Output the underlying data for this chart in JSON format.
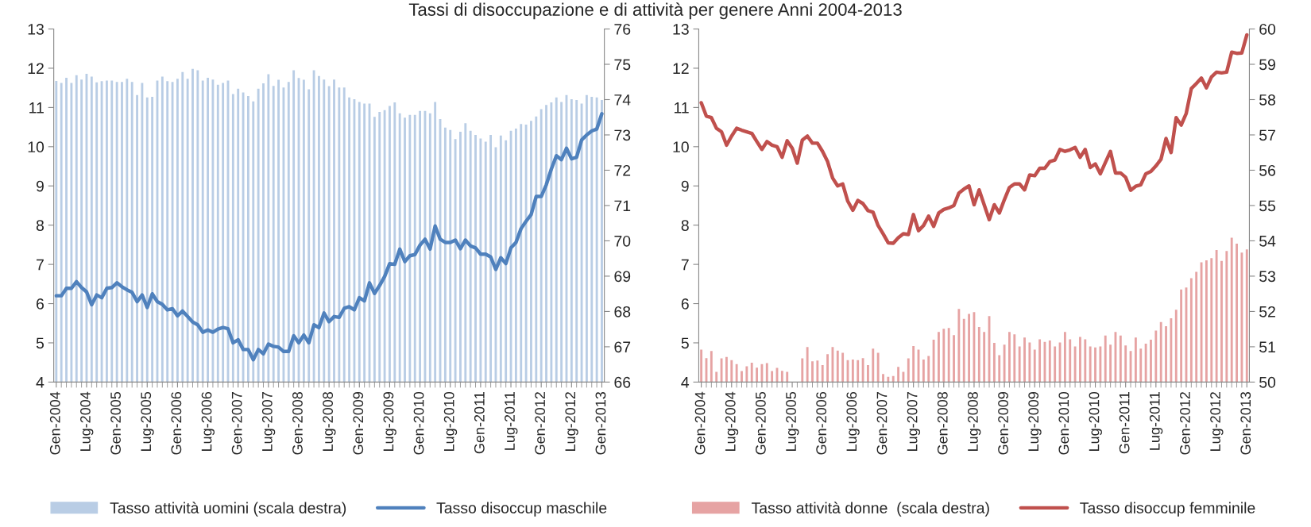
{
  "chart_data": [
    {
      "type": "bar",
      "title": "Tassi di disoccupazione e di attività per genere Anni 2004-2013",
      "categories": [
        "Gen-2004",
        null,
        null,
        null,
        null,
        null,
        "Lug-2004",
        null,
        null,
        null,
        null,
        null,
        "Gen-2005",
        null,
        null,
        null,
        null,
        null,
        "Lug-2005",
        null,
        null,
        null,
        null,
        null,
        "Gen-2006",
        null,
        null,
        null,
        null,
        null,
        "Lug-2006",
        null,
        null,
        null,
        null,
        null,
        "Gen-2007",
        null,
        null,
        null,
        null,
        null,
        "Lug-2007",
        null,
        null,
        null,
        null,
        null,
        "Gen-2008",
        null,
        null,
        null,
        null,
        null,
        "Lug-2008",
        null,
        null,
        null,
        null,
        null,
        "Gen-2009",
        null,
        null,
        null,
        null,
        null,
        "Lug-2009",
        null,
        null,
        null,
        null,
        null,
        "Gen-2010",
        null,
        null,
        null,
        null,
        null,
        "Lug-2010",
        null,
        null,
        null,
        null,
        null,
        "Gen-2011",
        null,
        null,
        null,
        null,
        null,
        "Lug-2011",
        null,
        null,
        null,
        null,
        null,
        "Gen-2012",
        null,
        null,
        null,
        null,
        null,
        "Lug-2012",
        null,
        null,
        null,
        null,
        null,
        "Gen-2013"
      ],
      "ylim": [
        4,
        13
      ],
      "yticks": [
        4,
        5,
        6,
        7,
        8,
        9,
        10,
        11,
        12,
        13
      ],
      "y2lim": [
        66,
        76
      ],
      "y2ticks": [
        66,
        67,
        68,
        69,
        70,
        71,
        72,
        73,
        74,
        75,
        76
      ],
      "legend": "bottom",
      "grid": false,
      "series": [
        {
          "name": "Tasso attività uomini (scala destra)",
          "axis": "y2",
          "color": "#b9cde5",
          "values": [
            74.53,
            74.47,
            74.62,
            74.47,
            74.69,
            74.57,
            74.73,
            74.65,
            74.49,
            74.52,
            74.54,
            74.54,
            74.5,
            74.5,
            74.59,
            74.5,
            74.13,
            74.47,
            74.06,
            74.08,
            74.54,
            74.65,
            74.52,
            74.5,
            74.59,
            74.78,
            74.59,
            74.87,
            74.83,
            74.54,
            74.62,
            74.57,
            74.42,
            74.47,
            74.54,
            74.16,
            74.31,
            74.2,
            74.1,
            73.95,
            74.31,
            74.46,
            74.72,
            74.39,
            74.56,
            74.34,
            74.5,
            74.83,
            74.61,
            74.56,
            74.29,
            74.83,
            74.67,
            74.57,
            74.38,
            74.57,
            74.34,
            74.34,
            74.06,
            74.01,
            73.93,
            73.89,
            73.89,
            73.51,
            73.65,
            73.7,
            73.82,
            73.92,
            73.61,
            73.49,
            73.57,
            73.57,
            73.68,
            73.68,
            73.61,
            73.93,
            73.45,
            73.21,
            73.14,
            72.88,
            73.09,
            73.33,
            73.12,
            73.0,
            72.9,
            72.81,
            73.0,
            72.65,
            72.98,
            72.85,
            73.12,
            73.18,
            73.31,
            73.29,
            73.4,
            73.52,
            73.73,
            73.85,
            73.92,
            74.06,
            73.93,
            74.13,
            74.01,
            73.99,
            73.89,
            74.13,
            74.08,
            74.06,
            73.99
          ]
        },
        {
          "name": "Tasso disoccup maschile",
          "type": "line",
          "axis": "y",
          "color": "#4f81bd",
          "values": [
            6.2,
            6.2,
            6.39,
            6.39,
            6.56,
            6.41,
            6.3,
            5.97,
            6.22,
            6.15,
            6.39,
            6.41,
            6.53,
            6.43,
            6.35,
            6.29,
            6.05,
            6.22,
            5.9,
            6.25,
            6.05,
            5.98,
            5.84,
            5.87,
            5.69,
            5.81,
            5.67,
            5.53,
            5.46,
            5.27,
            5.33,
            5.27,
            5.35,
            5.39,
            5.36,
            5.0,
            5.08,
            4.83,
            4.83,
            4.57,
            4.83,
            4.72,
            4.97,
            4.91,
            4.89,
            4.78,
            4.78,
            5.18,
            5.0,
            5.2,
            5.0,
            5.46,
            5.39,
            5.76,
            5.54,
            5.67,
            5.65,
            5.88,
            5.92,
            5.84,
            6.15,
            6.07,
            6.53,
            6.26,
            6.46,
            6.69,
            7.02,
            7.0,
            7.39,
            7.07,
            7.22,
            7.25,
            7.49,
            7.64,
            7.39,
            7.98,
            7.64,
            7.56,
            7.56,
            7.62,
            7.4,
            7.62,
            7.47,
            7.42,
            7.26,
            7.26,
            7.19,
            6.87,
            7.17,
            7.02,
            7.42,
            7.56,
            7.91,
            8.1,
            8.27,
            8.73,
            8.73,
            9.03,
            9.43,
            9.77,
            9.67,
            9.96,
            9.69,
            9.73,
            10.17,
            10.3,
            10.4,
            10.45,
            10.84
          ]
        }
      ]
    },
    {
      "type": "bar",
      "categories": [
        "Gen-2004",
        null,
        null,
        null,
        null,
        null,
        "Lug-2004",
        null,
        null,
        null,
        null,
        null,
        "Gen-2005",
        null,
        null,
        null,
        null,
        null,
        "Lug-2005",
        null,
        null,
        null,
        null,
        null,
        "Gen-2006",
        null,
        null,
        null,
        null,
        null,
        "Lug-2006",
        null,
        null,
        null,
        null,
        null,
        "Gen-2007",
        null,
        null,
        null,
        null,
        null,
        "Lug-2007",
        null,
        null,
        null,
        null,
        null,
        "Gen-2008",
        null,
        null,
        null,
        null,
        null,
        "Lug-2008",
        null,
        null,
        null,
        null,
        null,
        "Gen-2009",
        null,
        null,
        null,
        null,
        null,
        "Lug-2009",
        null,
        null,
        null,
        null,
        null,
        "Gen-2010",
        null,
        null,
        null,
        null,
        null,
        "Lug-2010",
        null,
        null,
        null,
        null,
        null,
        "Gen-2011",
        null,
        null,
        null,
        null,
        null,
        "Lug-2011",
        null,
        null,
        null,
        null,
        null,
        "Gen-2012",
        null,
        null,
        null,
        null,
        null,
        "Lug-2012",
        null,
        null,
        null,
        null,
        null,
        "Gen-2013"
      ],
      "ylim": [
        4,
        13
      ],
      "yticks": [
        4,
        5,
        6,
        7,
        8,
        9,
        10,
        11,
        12,
        13
      ],
      "y2lim": [
        50,
        60
      ],
      "y2ticks": [
        50,
        51,
        52,
        53,
        54,
        55,
        56,
        57,
        58,
        59,
        60
      ],
      "legend": "bottom",
      "grid": false,
      "series": [
        {
          "name": "Tasso attività donne  (scala destra)",
          "axis": "y2",
          "color": "#e6a3a3",
          "values": [
            50.92,
            50.68,
            50.88,
            50.29,
            50.67,
            50.71,
            50.62,
            50.51,
            50.31,
            50.45,
            50.55,
            50.41,
            50.51,
            50.54,
            50.31,
            50.4,
            50.32,
            50.29,
            50.0,
            50.0,
            50.67,
            50.99,
            50.59,
            50.61,
            50.48,
            50.79,
            50.99,
            50.89,
            50.83,
            50.62,
            50.64,
            50.62,
            50.68,
            50.48,
            50.95,
            50.83,
            50.23,
            50.15,
            50.17,
            50.43,
            50.29,
            50.67,
            51.02,
            50.92,
            50.64,
            50.74,
            51.2,
            51.42,
            51.51,
            51.53,
            51.33,
            52.07,
            51.79,
            51.93,
            51.98,
            51.56,
            51.42,
            51.87,
            51.11,
            50.76,
            51.06,
            51.42,
            51.35,
            51.01,
            51.26,
            51.12,
            50.92,
            51.21,
            51.14,
            51.18,
            51.01,
            51.12,
            51.42,
            51.21,
            51.01,
            51.28,
            51.21,
            51.01,
            50.98,
            51.01,
            51.32,
            51.06,
            51.42,
            51.32,
            51.04,
            50.88,
            51.26,
            50.95,
            51.09,
            51.2,
            51.46,
            51.7,
            51.58,
            51.81,
            52.05,
            52.62,
            52.68,
            52.94,
            53.12,
            53.39,
            53.45,
            53.51,
            53.74,
            53.43,
            53.71,
            54.09,
            53.92,
            53.67,
            53.76
          ]
        },
        {
          "name": "Tasso disoccup femminile",
          "type": "line",
          "axis": "y",
          "color": "#c0504d",
          "values": [
            11.12,
            10.78,
            10.74,
            10.47,
            10.38,
            10.04,
            10.27,
            10.47,
            10.42,
            10.38,
            10.34,
            10.13,
            9.93,
            10.13,
            10.04,
            10.0,
            9.73,
            10.15,
            9.96,
            9.58,
            10.17,
            10.27,
            10.09,
            10.09,
            9.88,
            9.62,
            9.2,
            9.0,
            9.05,
            8.61,
            8.38,
            8.63,
            8.55,
            8.37,
            8.33,
            7.99,
            7.78,
            7.55,
            7.54,
            7.68,
            7.78,
            7.76,
            8.27,
            7.86,
            7.99,
            8.23,
            7.97,
            8.31,
            8.4,
            8.44,
            8.5,
            8.82,
            8.92,
            9.0,
            8.52,
            8.9,
            8.52,
            8.14,
            8.52,
            8.31,
            8.65,
            8.96,
            9.05,
            9.05,
            8.9,
            9.28,
            9.26,
            9.45,
            9.45,
            9.62,
            9.66,
            9.93,
            9.88,
            9.92,
            9.98,
            9.73,
            9.93,
            9.47,
            9.56,
            9.31,
            9.6,
            9.88,
            9.33,
            9.33,
            9.22,
            8.89,
            8.99,
            9.03,
            9.31,
            9.37,
            9.51,
            9.68,
            10.21,
            9.85,
            10.74,
            10.55,
            10.85,
            11.48,
            11.61,
            11.75,
            11.5,
            11.78,
            11.9,
            11.88,
            11.9,
            12.41,
            12.38,
            12.39,
            12.85
          ]
        }
      ]
    }
  ]
}
